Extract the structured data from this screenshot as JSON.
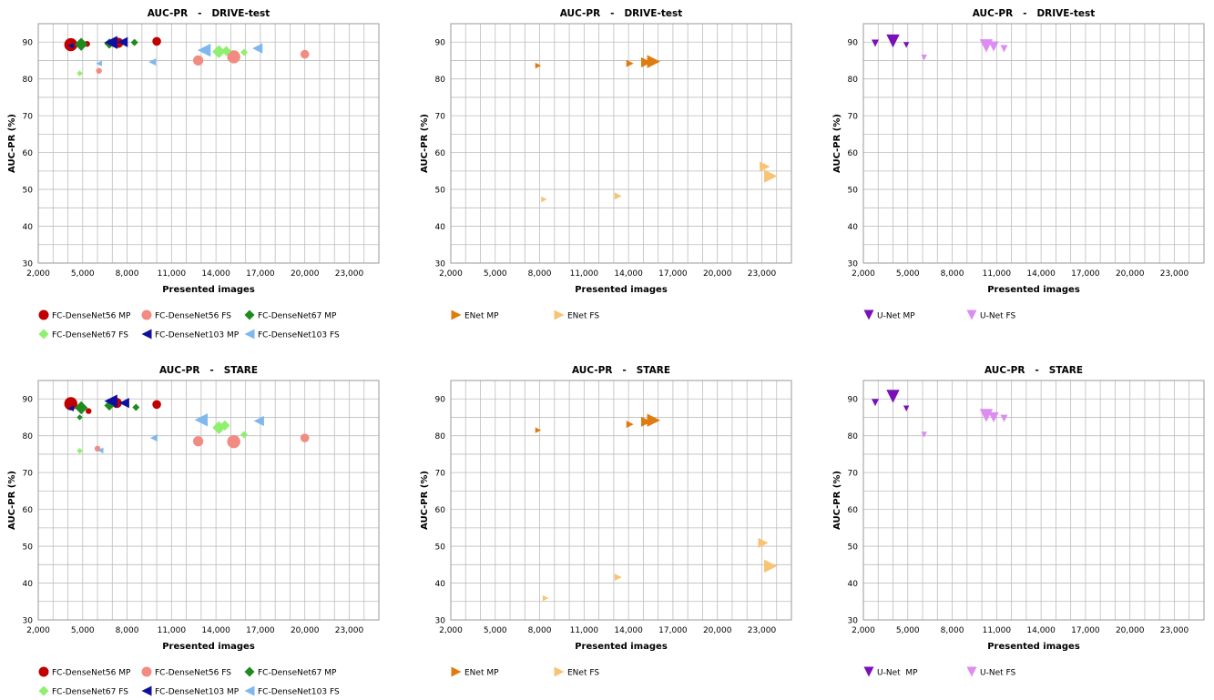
{
  "colors": {
    "FC-DenseNet56 MP": "#c00000",
    "FC-DenseNet56 FS": "#f28b82",
    "FC-DenseNet67 MP": "#1f8a1f",
    "FC-DenseNet67 FS": "#8ff06f",
    "FC-DenseNet103 MP": "#1010a0",
    "FC-DenseNet103 FS": "#7fb8ec",
    "ENet MP": "#e07b10",
    "ENet FS": "#f7c476",
    "U-Net MP": "#7a10b8",
    "U-Net FS": "#dd8cf2",
    "U-Net  MP": "#7a10b8"
  },
  "chart_data": [
    {
      "type": "scatter",
      "title": "AUC-PR   -   DRIVE-test",
      "xlabel": "Presented images",
      "ylabel": "AUC-PR (%)",
      "xlim": [
        2000,
        25000
      ],
      "ylim": [
        30,
        95
      ],
      "xticks": [
        "2,000",
        "5,000",
        "8,000",
        "11,000",
        "14,000",
        "17,000",
        "20,000",
        "23,000"
      ],
      "yticks": [
        "30",
        "40",
        "50",
        "60",
        "70",
        "80",
        "90"
      ],
      "grid": true,
      "legend_position": "bottom",
      "series": [
        {
          "name": "FC-DenseNet56 MP",
          "marker": "circle",
          "points": [
            [
              4200,
              89.3,
              4
            ],
            [
              5300,
              89.5,
              1.5
            ],
            [
              7400,
              89.8,
              3
            ],
            [
              10000,
              90.2,
              2.5
            ]
          ]
        },
        {
          "name": "FC-DenseNet56 FS",
          "marker": "circle",
          "points": [
            [
              6100,
              82.2,
              1.5
            ],
            [
              12800,
              85.0,
              3
            ],
            [
              15200,
              86.0,
              4
            ],
            [
              20000,
              86.7,
              2.5
            ]
          ]
        },
        {
          "name": "FC-DenseNet67 MP",
          "marker": "diamond",
          "points": [
            [
              4900,
              89.4,
              4
            ],
            [
              6800,
              89.6,
              3
            ],
            [
              8500,
              89.9,
              2
            ]
          ]
        },
        {
          "name": "FC-DenseNet67 FS",
          "marker": "diamond",
          "points": [
            [
              4800,
              81.5,
              1.5
            ],
            [
              14200,
              87.4,
              4
            ],
            [
              14700,
              87.6,
              3
            ],
            [
              15900,
              87.2,
              2
            ]
          ]
        },
        {
          "name": "FC-DenseNet103 MP",
          "marker": "triangle-left",
          "points": [
            [
              4200,
              89.0,
              1.5
            ],
            [
              6900,
              89.9,
              4
            ],
            [
              7700,
              90.0,
              3
            ]
          ]
        },
        {
          "name": "FC-DenseNet103 FS",
          "marker": "triangle-left",
          "points": [
            [
              6100,
              84.2,
              1.5
            ],
            [
              9700,
              84.6,
              2
            ],
            [
              13200,
              87.8,
              4
            ],
            [
              16800,
              88.3,
              3
            ]
          ]
        }
      ]
    },
    {
      "type": "scatter",
      "title": "AUC-PR   -   DRIVE-test",
      "xlabel": "Presented images",
      "ylabel": "AUC-PR (%)",
      "xlim": [
        2000,
        25000
      ],
      "ylim": [
        30,
        95
      ],
      "xticks": [
        "2,000",
        "5,000",
        "8,000",
        "11,000",
        "14,000",
        "17,000",
        "20,000",
        "23,000"
      ],
      "yticks": [
        "30",
        "40",
        "50",
        "60",
        "70",
        "80",
        "90"
      ],
      "grid": true,
      "legend_position": "bottom",
      "series": [
        {
          "name": "ENet MP",
          "marker": "triangle-right",
          "points": [
            [
              7900,
              83.6,
              1.5
            ],
            [
              14100,
              84.2,
              2
            ],
            [
              15200,
              84.5,
              3
            ],
            [
              15700,
              84.7,
              4
            ]
          ]
        },
        {
          "name": "ENet FS",
          "marker": "triangle-right",
          "points": [
            [
              8300,
              47.3,
              1.5
            ],
            [
              13300,
              48.2,
              2
            ],
            [
              23200,
              56.2,
              3
            ],
            [
              23600,
              53.6,
              4
            ]
          ]
        }
      ]
    },
    {
      "type": "scatter",
      "title": "AUC-PR   -   DRIVE-test",
      "xlabel": "Presented images",
      "ylabel": "AUC-PR (%)",
      "xlim": [
        2000,
        25000
      ],
      "ylim": [
        30,
        95
      ],
      "xticks": [
        "2,000",
        "5,000",
        "8,000",
        "11,000",
        "14,000",
        "17,000",
        "20,000",
        "23,000"
      ],
      "yticks": [
        "30",
        "40",
        "50",
        "60",
        "70",
        "80",
        "90"
      ],
      "grid": true,
      "legend_position": "bottom",
      "series": [
        {
          "name": "U-Net MP",
          "marker": "triangle-down",
          "points": [
            [
              2800,
              89.7,
              2
            ],
            [
              4000,
              90.3,
              4
            ],
            [
              4900,
              89.2,
              1.5
            ]
          ]
        },
        {
          "name": "U-Net FS",
          "marker": "triangle-down",
          "points": [
            [
              6100,
              85.8,
              1.5
            ],
            [
              10300,
              89.0,
              4
            ],
            [
              10800,
              88.8,
              3
            ],
            [
              11500,
              88.2,
              2
            ]
          ]
        }
      ]
    },
    {
      "type": "scatter",
      "title": "AUC-PR   -   STARE",
      "xlabel": "Presented images",
      "ylabel": "AUC-PR (%)",
      "xlim": [
        2000,
        25000
      ],
      "ylim": [
        30,
        95
      ],
      "xticks": [
        "2,000",
        "5,000",
        "8,000",
        "11,000",
        "14,000",
        "17,000",
        "20,000",
        "23,000"
      ],
      "yticks": [
        "30",
        "40",
        "50",
        "60",
        "70",
        "80",
        "90"
      ],
      "grid": true,
      "legend_position": "bottom",
      "series": [
        {
          "name": "FC-DenseNet56 MP",
          "marker": "circle",
          "points": [
            [
              4200,
              88.7,
              4
            ],
            [
              5400,
              86.7,
              1.5
            ],
            [
              7300,
              88.9,
              3
            ],
            [
              10000,
              88.5,
              2.5
            ]
          ]
        },
        {
          "name": "FC-DenseNet56 FS",
          "marker": "circle",
          "points": [
            [
              6000,
              76.5,
              1.5
            ],
            [
              12800,
              78.5,
              3
            ],
            [
              15200,
              78.4,
              4
            ],
            [
              20000,
              79.4,
              2.5
            ]
          ]
        },
        {
          "name": "FC-DenseNet67 MP",
          "marker": "diamond",
          "points": [
            [
              4900,
              87.6,
              4
            ],
            [
              4800,
              85.0,
              1.5
            ],
            [
              6800,
              88.2,
              3
            ],
            [
              8600,
              87.7,
              2
            ]
          ]
        },
        {
          "name": "FC-DenseNet67 FS",
          "marker": "diamond",
          "points": [
            [
              4800,
              75.9,
              1.5
            ],
            [
              14200,
              82.2,
              4
            ],
            [
              14600,
              82.8,
              3
            ],
            [
              15900,
              80.3,
              2
            ]
          ]
        },
        {
          "name": "FC-DenseNet103 MP",
          "marker": "triangle-left",
          "points": [
            [
              4200,
              87.4,
              1.5
            ],
            [
              6900,
              89.4,
              4
            ],
            [
              7800,
              88.9,
              3
            ]
          ]
        },
        {
          "name": "FC-DenseNet103 FS",
          "marker": "triangle-left",
          "points": [
            [
              6200,
              76.0,
              1.5
            ],
            [
              9800,
              79.4,
              2
            ],
            [
              13000,
              84.3,
              4
            ],
            [
              16900,
              84.0,
              3
            ]
          ]
        }
      ]
    },
    {
      "type": "scatter",
      "title": "AUC-PR   -   STARE",
      "xlabel": "Presented images",
      "ylabel": "AUC-PR (%)",
      "xlim": [
        2000,
        25000
      ],
      "ylim": [
        30,
        95
      ],
      "xticks": [
        "2,000",
        "5,000",
        "8,000",
        "11,000",
        "14,000",
        "17,000",
        "20,000",
        "23,000"
      ],
      "yticks": [
        "30",
        "40",
        "50",
        "60",
        "70",
        "80",
        "90"
      ],
      "grid": true,
      "legend_position": "bottom",
      "series": [
        {
          "name": "ENet MP",
          "marker": "triangle-right",
          "points": [
            [
              7900,
              81.5,
              1.5
            ],
            [
              14100,
              83.1,
              2
            ],
            [
              15200,
              83.8,
              3
            ],
            [
              15700,
              84.2,
              4
            ]
          ]
        },
        {
          "name": "ENet FS",
          "marker": "triangle-right",
          "points": [
            [
              8400,
              35.9,
              1.5
            ],
            [
              13300,
              41.6,
              2
            ],
            [
              23100,
              50.9,
              3
            ],
            [
              23600,
              44.6,
              4
            ]
          ]
        }
      ]
    },
    {
      "type": "scatter",
      "title": "AUC-PR   -   STARE",
      "xlabel": "Presented images",
      "ylabel": "AUC-PR (%)",
      "xlim": [
        2000,
        25000
      ],
      "ylim": [
        30,
        95
      ],
      "xticks": [
        "2,000",
        "5,000",
        "8,000",
        "11,000",
        "14,000",
        "17,000",
        "20,000",
        "23,000"
      ],
      "yticks": [
        "30",
        "40",
        "50",
        "60",
        "70",
        "80",
        "90"
      ],
      "grid": true,
      "legend_position": "bottom",
      "series": [
        {
          "name": "U-Net  MP",
          "marker": "triangle-down",
          "points": [
            [
              2800,
              89.0,
              2
            ],
            [
              4000,
              90.7,
              4
            ],
            [
              4900,
              87.4,
              1.5
            ]
          ]
        },
        {
          "name": "U-Net FS",
          "marker": "triangle-down",
          "points": [
            [
              6100,
              80.3,
              1.5
            ],
            [
              10300,
              85.5,
              4
            ],
            [
              10800,
              85.0,
              3
            ],
            [
              11500,
              84.7,
              2
            ]
          ]
        }
      ]
    }
  ]
}
